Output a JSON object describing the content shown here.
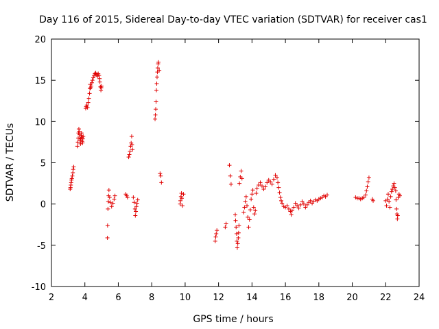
{
  "chart_data": {
    "type": "scatter",
    "title": "Day 116 of 2015, Sidereal Day-to-day VTEC variation (SDTVAR) for receiver cas1",
    "xlabel": "GPS time / hours",
    "ylabel": "SDTVAR / TECUs",
    "xlim": [
      2,
      24
    ],
    "ylim": [
      -10,
      20
    ],
    "xticks": [
      2,
      4,
      6,
      8,
      10,
      12,
      14,
      16,
      18,
      20,
      22,
      24
    ],
    "yticks": [
      -10,
      -5,
      0,
      5,
      10,
      15,
      20
    ],
    "grid": false,
    "marker": "+",
    "color": "#e00000",
    "series": [
      {
        "name": "SDTVAR",
        "points": [
          [
            3.12,
            1.8
          ],
          [
            3.14,
            2.0
          ],
          [
            3.16,
            2.3
          ],
          [
            3.18,
            2.6
          ],
          [
            3.2,
            2.9
          ],
          [
            3.22,
            3.1
          ],
          [
            3.25,
            3.4
          ],
          [
            3.28,
            3.8
          ],
          [
            3.3,
            4.2
          ],
          [
            3.33,
            4.5
          ],
          [
            3.55,
            7.0
          ],
          [
            3.58,
            7.5
          ],
          [
            3.6,
            8.0
          ],
          [
            3.62,
            8.6
          ],
          [
            3.64,
            9.1
          ],
          [
            3.66,
            8.8
          ],
          [
            3.68,
            8.4
          ],
          [
            3.7,
            8.0
          ],
          [
            3.72,
            7.7
          ],
          [
            3.74,
            7.3
          ],
          [
            3.76,
            7.9
          ],
          [
            3.78,
            8.3
          ],
          [
            3.8,
            8.6
          ],
          [
            3.82,
            8.1
          ],
          [
            3.84,
            7.6
          ],
          [
            3.86,
            7.4
          ],
          [
            3.88,
            7.9
          ],
          [
            3.9,
            8.2
          ],
          [
            4.05,
            11.6
          ],
          [
            4.08,
            11.8
          ],
          [
            4.12,
            12.0
          ],
          [
            4.16,
            11.7
          ],
          [
            4.2,
            12.3
          ],
          [
            4.24,
            12.8
          ],
          [
            4.28,
            13.4
          ],
          [
            4.3,
            14.0
          ],
          [
            4.32,
            14.5
          ],
          [
            4.35,
            14.1
          ],
          [
            4.38,
            14.3
          ],
          [
            4.42,
            14.7
          ],
          [
            4.45,
            15.0
          ],
          [
            4.5,
            15.3
          ],
          [
            4.55,
            15.6
          ],
          [
            4.6,
            15.8
          ],
          [
            4.65,
            15.9
          ],
          [
            4.7,
            15.7
          ],
          [
            4.75,
            15.5
          ],
          [
            4.8,
            15.8
          ],
          [
            4.85,
            15.6
          ],
          [
            4.88,
            15.2
          ],
          [
            4.9,
            14.8
          ],
          [
            4.93,
            14.2
          ],
          [
            4.96,
            13.8
          ],
          [
            4.98,
            14.1
          ],
          [
            5.0,
            14.3
          ],
          [
            5.35,
            -4.1
          ],
          [
            5.36,
            -2.6
          ],
          [
            5.38,
            -0.6
          ],
          [
            5.4,
            0.3
          ],
          [
            5.42,
            1.0
          ],
          [
            5.44,
            1.7
          ],
          [
            5.48,
            0.8
          ],
          [
            5.52,
            0.2
          ],
          [
            5.6,
            -0.3
          ],
          [
            5.68,
            0.1
          ],
          [
            5.75,
            0.6
          ],
          [
            5.8,
            1.0
          ],
          [
            6.45,
            1.2
          ],
          [
            6.5,
            1.0
          ],
          [
            6.55,
            0.8
          ],
          [
            6.62,
            5.7
          ],
          [
            6.66,
            6.0
          ],
          [
            6.7,
            6.4
          ],
          [
            6.74,
            7.0
          ],
          [
            6.77,
            7.4
          ],
          [
            6.8,
            8.2
          ],
          [
            6.82,
            7.2
          ],
          [
            6.85,
            6.6
          ],
          [
            6.9,
            0.8
          ],
          [
            6.95,
            0.2
          ],
          [
            7.0,
            -0.6
          ],
          [
            7.02,
            -1.4
          ],
          [
            7.05,
            -0.9
          ],
          [
            7.08,
            -0.3
          ],
          [
            7.12,
            0.1
          ],
          [
            7.16,
            0.5
          ],
          [
            8.2,
            10.3
          ],
          [
            8.22,
            10.8
          ],
          [
            8.24,
            11.5
          ],
          [
            8.26,
            12.4
          ],
          [
            8.28,
            13.8
          ],
          [
            8.3,
            14.6
          ],
          [
            8.32,
            15.4
          ],
          [
            8.34,
            16.0
          ],
          [
            8.36,
            16.5
          ],
          [
            8.38,
            17.0
          ],
          [
            8.4,
            17.2
          ],
          [
            8.45,
            16.2
          ],
          [
            8.5,
            3.7
          ],
          [
            8.54,
            3.4
          ],
          [
            8.58,
            2.6
          ],
          [
            9.7,
            0.0
          ],
          [
            9.72,
            0.4
          ],
          [
            9.75,
            0.9
          ],
          [
            9.78,
            1.3
          ],
          [
            9.8,
            0.7
          ],
          [
            9.84,
            -0.2
          ],
          [
            9.9,
            1.2
          ],
          [
            11.8,
            -4.5
          ],
          [
            11.83,
            -4.0
          ],
          [
            11.86,
            -3.6
          ],
          [
            11.9,
            -3.2
          ],
          [
            12.4,
            -2.8
          ],
          [
            12.45,
            -2.4
          ],
          [
            12.65,
            4.7
          ],
          [
            12.7,
            3.4
          ],
          [
            12.75,
            2.4
          ],
          [
            13.0,
            -1.3
          ],
          [
            13.02,
            -2.0
          ],
          [
            13.05,
            -2.8
          ],
          [
            13.08,
            -3.6
          ],
          [
            13.1,
            -4.5
          ],
          [
            13.12,
            -5.3
          ],
          [
            13.15,
            -4.8
          ],
          [
            13.18,
            -4.1
          ],
          [
            13.2,
            -3.5
          ],
          [
            13.22,
            -2.6
          ],
          [
            13.25,
            2.5
          ],
          [
            13.3,
            3.3
          ],
          [
            13.35,
            4.0
          ],
          [
            13.4,
            3.1
          ],
          [
            13.5,
            -1.0
          ],
          [
            13.55,
            -0.4
          ],
          [
            13.6,
            0.3
          ],
          [
            13.65,
            0.9
          ],
          [
            13.7,
            -0.2
          ],
          [
            13.75,
            -1.6
          ],
          [
            13.8,
            -2.8
          ],
          [
            13.85,
            -1.9
          ],
          [
            13.9,
            -0.7
          ],
          [
            13.95,
            0.6
          ],
          [
            14.0,
            1.2
          ],
          [
            14.05,
            1.7
          ],
          [
            14.1,
            -0.4
          ],
          [
            14.15,
            -1.2
          ],
          [
            14.2,
            -0.8
          ],
          [
            14.25,
            1.3
          ],
          [
            14.3,
            1.9
          ],
          [
            14.4,
            2.3
          ],
          [
            14.5,
            2.6
          ],
          [
            14.6,
            2.2
          ],
          [
            14.7,
            1.8
          ],
          [
            14.8,
            2.1
          ],
          [
            14.9,
            2.6
          ],
          [
            15.0,
            2.9
          ],
          [
            15.1,
            2.7
          ],
          [
            15.2,
            2.4
          ],
          [
            15.3,
            3.0
          ],
          [
            15.4,
            3.5
          ],
          [
            15.5,
            3.2
          ],
          [
            15.55,
            2.6
          ],
          [
            15.6,
            2.0
          ],
          [
            15.65,
            1.4
          ],
          [
            15.7,
            0.8
          ],
          [
            15.75,
            0.4
          ],
          [
            15.8,
            0.1
          ],
          [
            15.9,
            -0.3
          ],
          [
            16.0,
            -0.4
          ],
          [
            16.1,
            -0.2
          ],
          [
            16.2,
            -0.6
          ],
          [
            16.3,
            -0.9
          ],
          [
            16.35,
            -1.3
          ],
          [
            16.4,
            -0.8
          ],
          [
            16.5,
            -0.4
          ],
          [
            16.6,
            0.1
          ],
          [
            16.7,
            -0.2
          ],
          [
            16.8,
            -0.5
          ],
          [
            16.9,
            -0.1
          ],
          [
            17.0,
            0.3
          ],
          [
            17.1,
            0.0
          ],
          [
            17.2,
            -0.4
          ],
          [
            17.3,
            -0.1
          ],
          [
            17.4,
            0.2
          ],
          [
            17.5,
            0.4
          ],
          [
            17.6,
            0.1
          ],
          [
            17.7,
            0.3
          ],
          [
            17.8,
            0.5
          ],
          [
            17.9,
            0.4
          ],
          [
            18.0,
            0.6
          ],
          [
            18.1,
            0.7
          ],
          [
            18.2,
            0.8
          ],
          [
            18.3,
            1.0
          ],
          [
            18.4,
            0.9
          ],
          [
            18.5,
            1.1
          ],
          [
            20.2,
            0.8
          ],
          [
            20.3,
            0.7
          ],
          [
            20.4,
            0.7
          ],
          [
            20.5,
            0.6
          ],
          [
            20.6,
            0.7
          ],
          [
            20.7,
            0.8
          ],
          [
            20.8,
            1.1
          ],
          [
            20.85,
            1.6
          ],
          [
            20.9,
            2.1
          ],
          [
            20.95,
            2.7
          ],
          [
            21.0,
            3.2
          ],
          [
            21.2,
            0.6
          ],
          [
            21.25,
            0.4
          ],
          [
            22.0,
            0.4
          ],
          [
            22.05,
            -0.2
          ],
          [
            22.1,
            0.6
          ],
          [
            22.15,
            1.2
          ],
          [
            22.2,
            0.3
          ],
          [
            22.25,
            -0.4
          ],
          [
            22.3,
            0.9
          ],
          [
            22.35,
            1.5
          ],
          [
            22.4,
            1.8
          ],
          [
            22.45,
            2.2
          ],
          [
            22.5,
            2.5
          ],
          [
            22.55,
            2.0
          ],
          [
            22.6,
            1.6
          ],
          [
            22.62,
            0.5
          ],
          [
            22.65,
            -0.6
          ],
          [
            22.68,
            -1.2
          ],
          [
            22.7,
            -1.8
          ],
          [
            22.72,
            -1.4
          ],
          [
            22.75,
            0.8
          ],
          [
            22.8,
            1.2
          ],
          [
            22.85,
            1.0
          ]
        ]
      }
    ]
  }
}
